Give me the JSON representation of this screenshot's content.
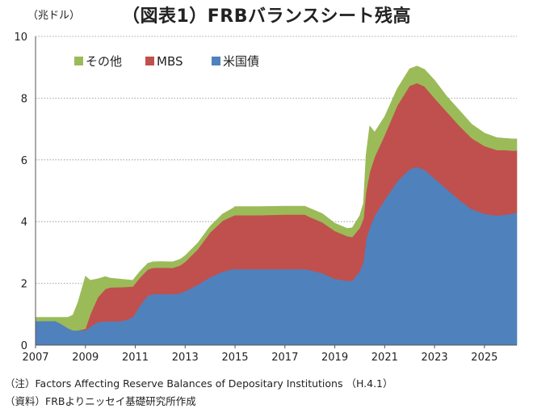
{
  "chart_data": {
    "type": "area",
    "title": "（図表1）FRBバランスシート残高",
    "unit_label": "（兆ドル）",
    "ylim": [
      0,
      10
    ],
    "y_ticks": [
      "0",
      "2",
      "4",
      "6",
      "8",
      "10"
    ],
    "x_range": [
      2007,
      2026.3
    ],
    "x_ticks": [
      "2007",
      "2009",
      "2011",
      "2013",
      "2015",
      "2017",
      "2019",
      "2021",
      "2023",
      "2025"
    ],
    "grid": true,
    "legend_position": "top-left",
    "stacked": true,
    "series": [
      {
        "name": "米国債",
        "color": "#4f81bd",
        "points": [
          [
            2007.0,
            0.78
          ],
          [
            2007.8,
            0.78
          ],
          [
            2008.0,
            0.7
          ],
          [
            2008.3,
            0.55
          ],
          [
            2008.5,
            0.48
          ],
          [
            2008.7,
            0.48
          ],
          [
            2009.0,
            0.48
          ],
          [
            2009.2,
            0.6
          ],
          [
            2009.5,
            0.75
          ],
          [
            2009.8,
            0.77
          ],
          [
            2010.0,
            0.77
          ],
          [
            2010.5,
            0.78
          ],
          [
            2010.9,
            0.9
          ],
          [
            2011.2,
            1.3
          ],
          [
            2011.5,
            1.6
          ],
          [
            2011.7,
            1.65
          ],
          [
            2012.0,
            1.66
          ],
          [
            2012.5,
            1.65
          ],
          [
            2012.8,
            1.68
          ],
          [
            2013.0,
            1.75
          ],
          [
            2013.5,
            1.95
          ],
          [
            2014.0,
            2.2
          ],
          [
            2014.5,
            2.38
          ],
          [
            2014.9,
            2.46
          ],
          [
            2015.0,
            2.46
          ],
          [
            2016.0,
            2.46
          ],
          [
            2017.0,
            2.46
          ],
          [
            2017.8,
            2.46
          ],
          [
            2018.0,
            2.43
          ],
          [
            2018.5,
            2.33
          ],
          [
            2019.0,
            2.15
          ],
          [
            2019.5,
            2.08
          ],
          [
            2019.7,
            2.08
          ],
          [
            2020.0,
            2.4
          ],
          [
            2020.15,
            2.7
          ],
          [
            2020.25,
            3.4
          ],
          [
            2020.4,
            3.8
          ],
          [
            2020.6,
            4.2
          ],
          [
            2021.0,
            4.7
          ],
          [
            2021.5,
            5.3
          ],
          [
            2022.0,
            5.7
          ],
          [
            2022.3,
            5.77
          ],
          [
            2022.6,
            5.68
          ],
          [
            2023.0,
            5.4
          ],
          [
            2023.5,
            5.05
          ],
          [
            2024.0,
            4.7
          ],
          [
            2024.5,
            4.4
          ],
          [
            2025.0,
            4.25
          ],
          [
            2025.5,
            4.2
          ],
          [
            2025.8,
            4.22
          ],
          [
            2026.1,
            4.25
          ],
          [
            2026.3,
            4.3
          ]
        ]
      },
      {
        "name": "MBS",
        "color": "#c0504d",
        "points": [
          [
            2007.0,
            0.0
          ],
          [
            2008.9,
            0.0
          ],
          [
            2009.0,
            0.05
          ],
          [
            2009.2,
            0.4
          ],
          [
            2009.5,
            0.8
          ],
          [
            2009.8,
            1.05
          ],
          [
            2010.0,
            1.1
          ],
          [
            2010.5,
            1.1
          ],
          [
            2010.9,
            1.0
          ],
          [
            2011.2,
            0.9
          ],
          [
            2011.5,
            0.85
          ],
          [
            2011.7,
            0.85
          ],
          [
            2012.0,
            0.85
          ],
          [
            2012.5,
            0.85
          ],
          [
            2012.8,
            0.9
          ],
          [
            2013.0,
            0.95
          ],
          [
            2013.5,
            1.15
          ],
          [
            2014.0,
            1.45
          ],
          [
            2014.5,
            1.65
          ],
          [
            2014.9,
            1.72
          ],
          [
            2015.0,
            1.75
          ],
          [
            2016.0,
            1.75
          ],
          [
            2017.0,
            1.77
          ],
          [
            2017.8,
            1.77
          ],
          [
            2018.0,
            1.72
          ],
          [
            2018.5,
            1.65
          ],
          [
            2019.0,
            1.55
          ],
          [
            2019.5,
            1.45
          ],
          [
            2019.7,
            1.42
          ],
          [
            2020.0,
            1.4
          ],
          [
            2020.15,
            1.4
          ],
          [
            2020.25,
            1.55
          ],
          [
            2020.4,
            1.8
          ],
          [
            2020.6,
            1.9
          ],
          [
            2021.0,
            2.1
          ],
          [
            2021.5,
            2.45
          ],
          [
            2022.0,
            2.7
          ],
          [
            2022.3,
            2.72
          ],
          [
            2022.6,
            2.7
          ],
          [
            2023.0,
            2.6
          ],
          [
            2023.5,
            2.5
          ],
          [
            2024.0,
            2.4
          ],
          [
            2024.5,
            2.3
          ],
          [
            2025.0,
            2.2
          ],
          [
            2025.5,
            2.12
          ],
          [
            2025.8,
            2.1
          ],
          [
            2026.1,
            2.05
          ],
          [
            2026.3,
            2.0
          ]
        ]
      },
      {
        "name": "その他",
        "color": "#9bbb59",
        "points": [
          [
            2007.0,
            0.12
          ],
          [
            2007.8,
            0.12
          ],
          [
            2008.0,
            0.2
          ],
          [
            2008.3,
            0.35
          ],
          [
            2008.5,
            0.5
          ],
          [
            2008.7,
            0.9
          ],
          [
            2009.0,
            1.7
          ],
          [
            2009.2,
            1.1
          ],
          [
            2009.5,
            0.6
          ],
          [
            2009.8,
            0.4
          ],
          [
            2010.0,
            0.3
          ],
          [
            2010.5,
            0.25
          ],
          [
            2010.9,
            0.2
          ],
          [
            2011.2,
            0.2
          ],
          [
            2011.5,
            0.2
          ],
          [
            2011.7,
            0.2
          ],
          [
            2012.0,
            0.2
          ],
          [
            2012.5,
            0.2
          ],
          [
            2012.8,
            0.2
          ],
          [
            2013.0,
            0.2
          ],
          [
            2013.5,
            0.2
          ],
          [
            2014.0,
            0.2
          ],
          [
            2014.5,
            0.22
          ],
          [
            2014.9,
            0.25
          ],
          [
            2015.0,
            0.28
          ],
          [
            2016.0,
            0.28
          ],
          [
            2017.0,
            0.27
          ],
          [
            2017.8,
            0.27
          ],
          [
            2018.0,
            0.28
          ],
          [
            2018.5,
            0.28
          ],
          [
            2019.0,
            0.25
          ],
          [
            2019.5,
            0.25
          ],
          [
            2019.7,
            0.3
          ],
          [
            2020.0,
            0.4
          ],
          [
            2020.15,
            0.5
          ],
          [
            2020.25,
            1.2
          ],
          [
            2020.4,
            1.5
          ],
          [
            2020.6,
            0.8
          ],
          [
            2021.0,
            0.6
          ],
          [
            2021.5,
            0.55
          ],
          [
            2022.0,
            0.55
          ],
          [
            2022.3,
            0.55
          ],
          [
            2022.6,
            0.55
          ],
          [
            2023.0,
            0.58
          ],
          [
            2023.5,
            0.5
          ],
          [
            2024.0,
            0.5
          ],
          [
            2024.5,
            0.45
          ],
          [
            2025.0,
            0.42
          ],
          [
            2025.5,
            0.4
          ],
          [
            2025.8,
            0.38
          ],
          [
            2026.1,
            0.38
          ],
          [
            2026.3,
            0.38
          ]
        ]
      }
    ]
  },
  "notes": {
    "line1": "（注）Factors Affecting Reserve Balances of Depositary Institutions （H.4.1）",
    "line2": "（資料）FRBよりニッセイ基礎研究所作成"
  }
}
